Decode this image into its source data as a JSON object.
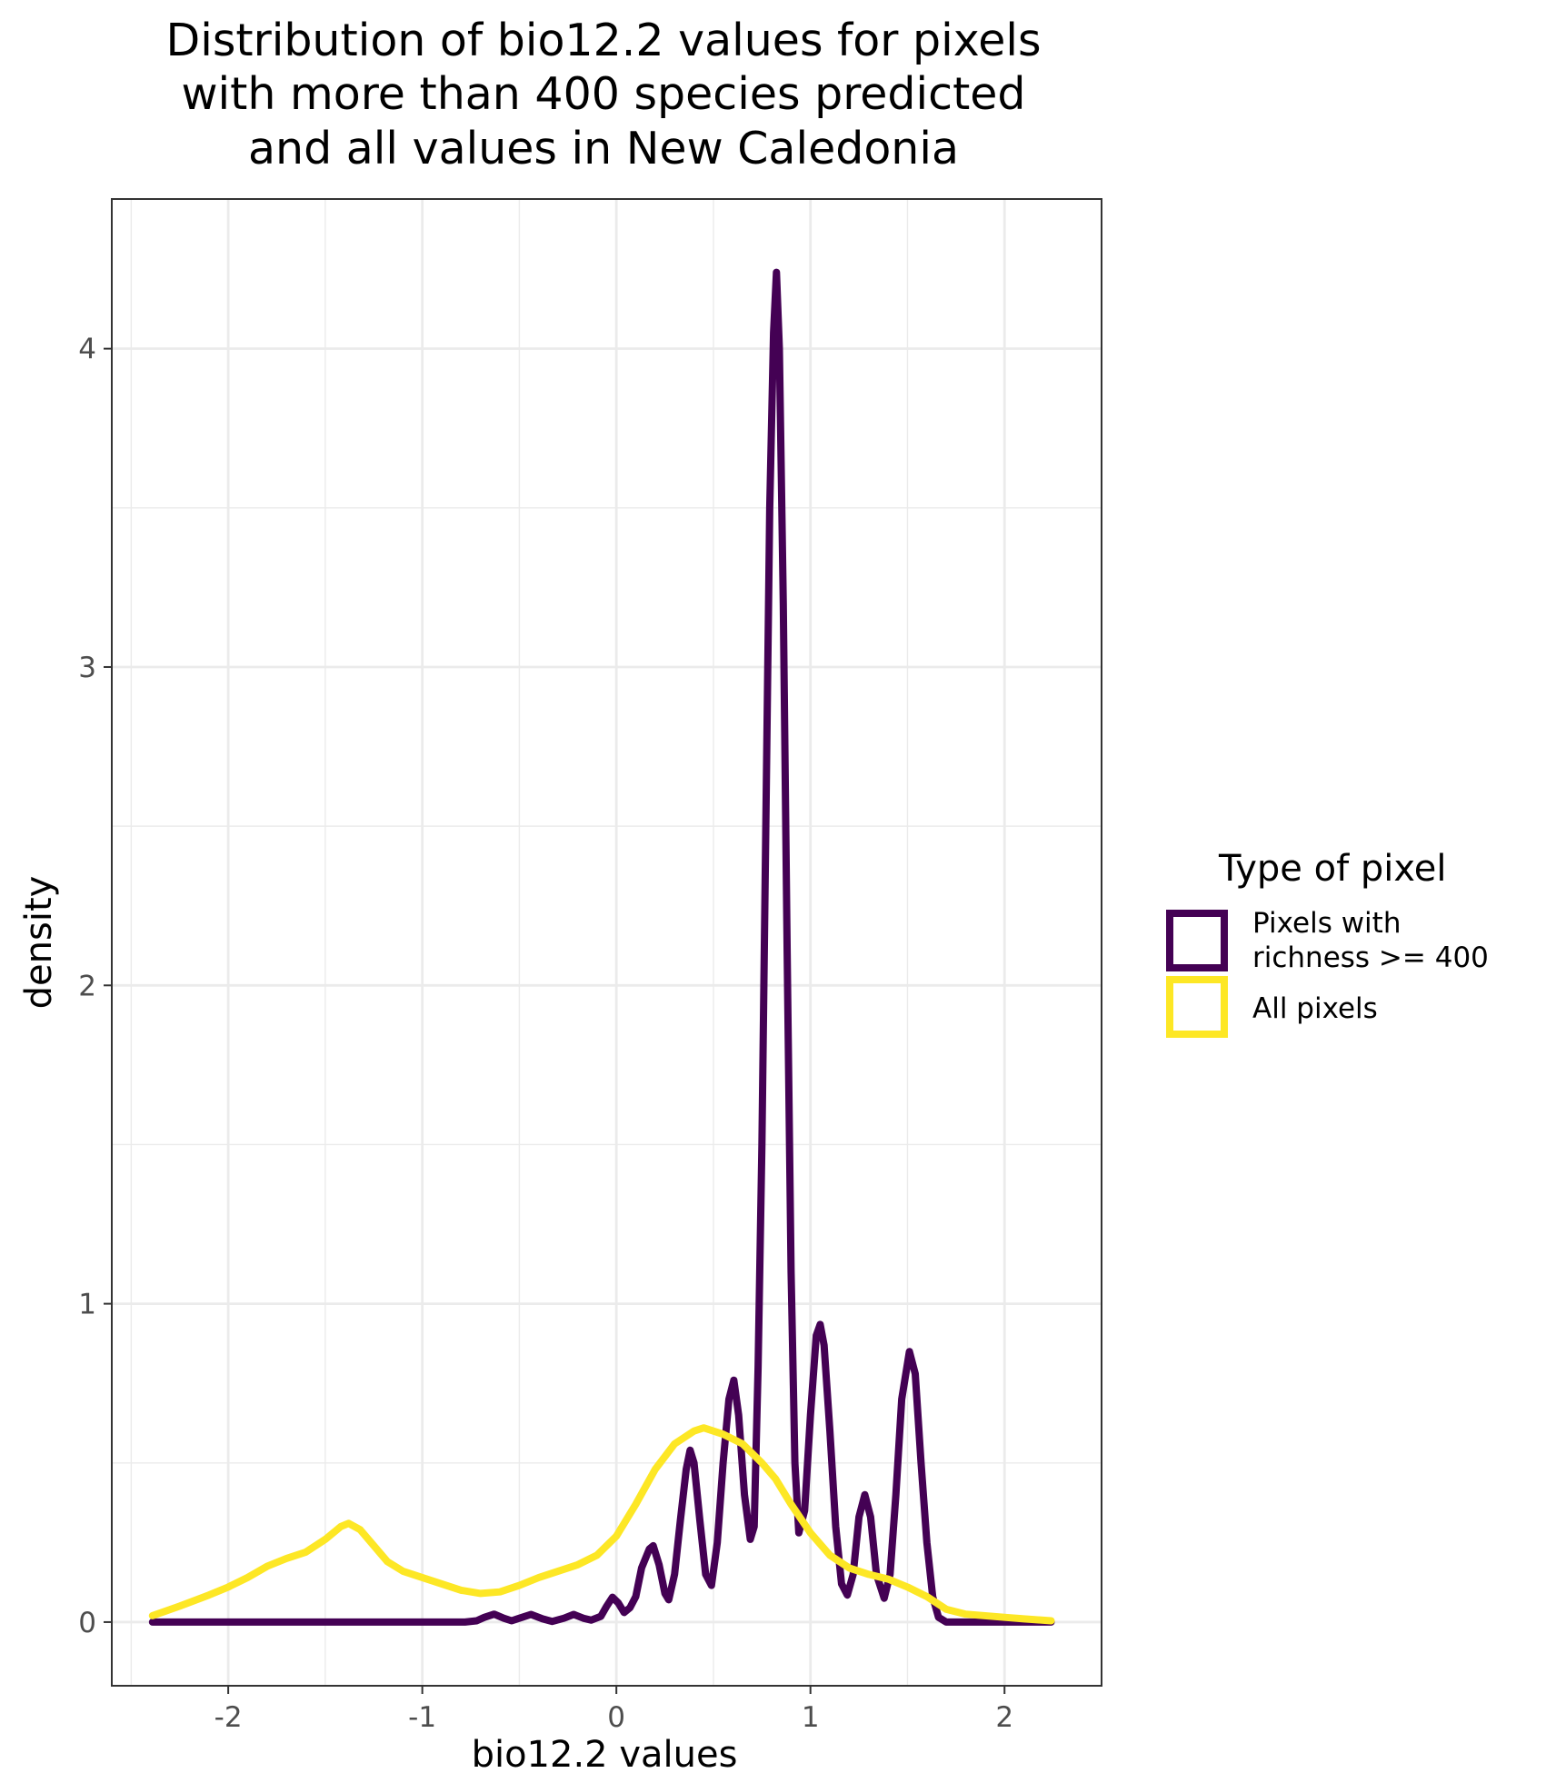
{
  "chart_data": {
    "type": "line",
    "title_lines": [
      "Distribution of bio12.2 values for pixels",
      "with more than 400 species predicted",
      "and all values in New Caledonia"
    ],
    "xlabel": "bio12.2 values",
    "ylabel": "density",
    "xlim": [
      -2.6,
      2.5
    ],
    "ylim": [
      -0.2,
      4.47
    ],
    "x_ticks": [
      -2,
      -1,
      0,
      1,
      2
    ],
    "x_tick_labels": [
      "-2",
      "-1",
      "0",
      "1",
      "2"
    ],
    "y_ticks": [
      0,
      1,
      2,
      3,
      4
    ],
    "y_tick_labels": [
      "0",
      "1",
      "2",
      "3",
      "4"
    ],
    "grid": true,
    "legend": {
      "title": "Type of pixel",
      "position": "right",
      "entries": [
        {
          "lines": [
            "Pixels with",
            "richness >= 400"
          ],
          "color": "#440154"
        },
        {
          "lines": [
            "All pixels"
          ],
          "color": "#FDE725"
        }
      ]
    },
    "series": [
      {
        "name": "Pixels with richness >= 400",
        "color": "#440154",
        "points": [
          [
            -2.39,
            0
          ],
          [
            -1.0,
            0
          ],
          [
            -0.78,
            0
          ],
          [
            -0.72,
            0.004
          ],
          [
            -0.68,
            0.015
          ],
          [
            -0.63,
            0.025
          ],
          [
            -0.58,
            0.012
          ],
          [
            -0.54,
            0.004
          ],
          [
            -0.5,
            0.012
          ],
          [
            -0.44,
            0.024
          ],
          [
            -0.38,
            0.01
          ],
          [
            -0.33,
            0.002
          ],
          [
            -0.27,
            0.012
          ],
          [
            -0.22,
            0.024
          ],
          [
            -0.17,
            0.012
          ],
          [
            -0.13,
            0.006
          ],
          [
            -0.08,
            0.018
          ],
          [
            -0.05,
            0.05
          ],
          [
            -0.02,
            0.078
          ],
          [
            0.01,
            0.06
          ],
          [
            0.04,
            0.03
          ],
          [
            0.07,
            0.045
          ],
          [
            0.1,
            0.08
          ],
          [
            0.13,
            0.17
          ],
          [
            0.17,
            0.23
          ],
          [
            0.19,
            0.24
          ],
          [
            0.22,
            0.18
          ],
          [
            0.25,
            0.09
          ],
          [
            0.27,
            0.07
          ],
          [
            0.3,
            0.15
          ],
          [
            0.33,
            0.32
          ],
          [
            0.36,
            0.48
          ],
          [
            0.38,
            0.54
          ],
          [
            0.4,
            0.5
          ],
          [
            0.43,
            0.32
          ],
          [
            0.46,
            0.15
          ],
          [
            0.49,
            0.115
          ],
          [
            0.52,
            0.25
          ],
          [
            0.55,
            0.5
          ],
          [
            0.58,
            0.7
          ],
          [
            0.605,
            0.76
          ],
          [
            0.63,
            0.65
          ],
          [
            0.66,
            0.4
          ],
          [
            0.69,
            0.26
          ],
          [
            0.71,
            0.3
          ],
          [
            0.73,
            0.8
          ],
          [
            0.75,
            1.5
          ],
          [
            0.77,
            2.5
          ],
          [
            0.79,
            3.5
          ],
          [
            0.81,
            4.05
          ],
          [
            0.825,
            4.24
          ],
          [
            0.84,
            4.0
          ],
          [
            0.86,
            3.2
          ],
          [
            0.88,
            2.1
          ],
          [
            0.9,
            1.1
          ],
          [
            0.92,
            0.5
          ],
          [
            0.94,
            0.28
          ],
          [
            0.97,
            0.35
          ],
          [
            1.0,
            0.65
          ],
          [
            1.03,
            0.9
          ],
          [
            1.05,
            0.935
          ],
          [
            1.07,
            0.87
          ],
          [
            1.1,
            0.6
          ],
          [
            1.13,
            0.3
          ],
          [
            1.16,
            0.12
          ],
          [
            1.19,
            0.085
          ],
          [
            1.22,
            0.15
          ],
          [
            1.25,
            0.33
          ],
          [
            1.28,
            0.4
          ],
          [
            1.31,
            0.33
          ],
          [
            1.34,
            0.15
          ],
          [
            1.38,
            0.075
          ],
          [
            1.41,
            0.15
          ],
          [
            1.44,
            0.4
          ],
          [
            1.47,
            0.7
          ],
          [
            1.51,
            0.85
          ],
          [
            1.54,
            0.78
          ],
          [
            1.57,
            0.5
          ],
          [
            1.6,
            0.25
          ],
          [
            1.63,
            0.08
          ],
          [
            1.66,
            0.015
          ],
          [
            1.7,
            0
          ],
          [
            2.24,
            0
          ]
        ]
      },
      {
        "name": "All pixels",
        "color": "#FDE725",
        "points": [
          [
            -2.39,
            0.02
          ],
          [
            -2.25,
            0.05
          ],
          [
            -2.1,
            0.085
          ],
          [
            -2.0,
            0.11
          ],
          [
            -1.9,
            0.14
          ],
          [
            -1.8,
            0.175
          ],
          [
            -1.7,
            0.2
          ],
          [
            -1.6,
            0.22
          ],
          [
            -1.5,
            0.26
          ],
          [
            -1.42,
            0.3
          ],
          [
            -1.38,
            0.31
          ],
          [
            -1.32,
            0.29
          ],
          [
            -1.25,
            0.24
          ],
          [
            -1.18,
            0.19
          ],
          [
            -1.1,
            0.16
          ],
          [
            -1.0,
            0.14
          ],
          [
            -0.9,
            0.12
          ],
          [
            -0.8,
            0.1
          ],
          [
            -0.7,
            0.09
          ],
          [
            -0.6,
            0.095
          ],
          [
            -0.5,
            0.115
          ],
          [
            -0.4,
            0.14
          ],
          [
            -0.3,
            0.16
          ],
          [
            -0.2,
            0.18
          ],
          [
            -0.1,
            0.21
          ],
          [
            0.0,
            0.27
          ],
          [
            0.1,
            0.37
          ],
          [
            0.2,
            0.48
          ],
          [
            0.3,
            0.56
          ],
          [
            0.4,
            0.6
          ],
          [
            0.45,
            0.61
          ],
          [
            0.55,
            0.59
          ],
          [
            0.65,
            0.56
          ],
          [
            0.75,
            0.5
          ],
          [
            0.82,
            0.45
          ],
          [
            0.9,
            0.37
          ],
          [
            1.0,
            0.28
          ],
          [
            1.1,
            0.21
          ],
          [
            1.2,
            0.17
          ],
          [
            1.3,
            0.15
          ],
          [
            1.4,
            0.135
          ],
          [
            1.5,
            0.11
          ],
          [
            1.6,
            0.08
          ],
          [
            1.7,
            0.04
          ],
          [
            1.8,
            0.025
          ],
          [
            2.0,
            0.015
          ],
          [
            2.1,
            0.01
          ],
          [
            2.24,
            0.004
          ]
        ]
      }
    ]
  }
}
